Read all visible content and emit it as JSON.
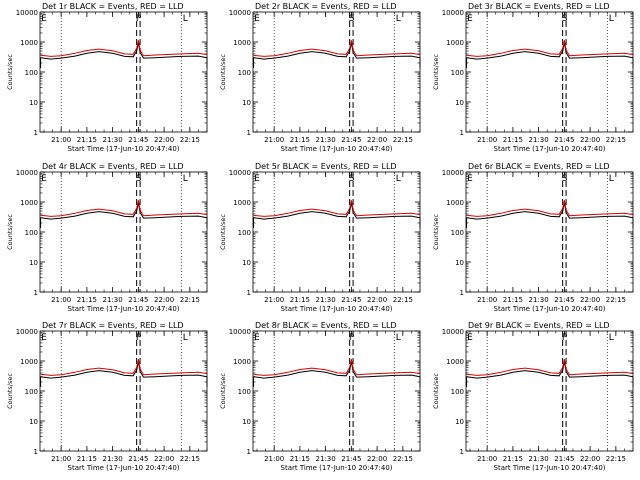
{
  "figure": {
    "background": "#ffffff",
    "foreground": "#000000",
    "ylabel": "Counts/sec",
    "xlabel": "Start Time (17-Jun-10 20:47:40)",
    "xticks": [
      "21:00",
      "21:15",
      "21:30",
      "21:45",
      "22:00",
      "22:15"
    ],
    "yticks": [
      "1",
      "10",
      "100",
      "1000",
      "10000"
    ]
  },
  "chart_data": [
    {
      "type": "line",
      "title": "Det 1r BLACK = Events, RED = LLD",
      "markers": [
        "E",
        "P",
        "L"
      ]
    },
    {
      "type": "line",
      "title": "Det 2r BLACK = Events, RED = LLD",
      "markers": [
        "E",
        "S",
        "L"
      ]
    },
    {
      "type": "line",
      "title": "Det 3r BLACK = Events, RED = LLD",
      "markers": [
        "E",
        "S",
        "L"
      ]
    },
    {
      "type": "line",
      "title": "Det 4r BLACK = Events, RED = LLD",
      "markers": [
        "E",
        "S",
        "L"
      ]
    },
    {
      "type": "line",
      "title": "Det 5r BLACK = Events, RED = LLD",
      "markers": [
        "E",
        "S",
        "L"
      ]
    },
    {
      "type": "line",
      "title": "Det 6r BLACK = Events, RED = LLD",
      "markers": [
        "E",
        "S",
        "L"
      ]
    },
    {
      "type": "line",
      "title": "Det 7r BLACK = Events, RED = LLD",
      "markers": [
        "E",
        "P",
        "L"
      ]
    },
    {
      "type": "line",
      "title": "Det 8r BLACK = Events, RED = LLD",
      "markers": [
        "E",
        "P",
        "L"
      ]
    },
    {
      "type": "line",
      "title": "Det 9r BLACK = Events, RED = LLD",
      "markers": [
        "E",
        "P",
        "L"
      ]
    }
  ],
  "shared_axes": {
    "xlim": [
      "20:47:40",
      "22:25:00"
    ],
    "ylim": [
      1,
      10000
    ],
    "yscale": "log",
    "dotted_vertical_lines_at": [
      "21:00",
      "22:10"
    ],
    "dashed_vertical_lines_at": [
      "21:44",
      "21:46"
    ],
    "series": [
      {
        "name": "Events",
        "color": "#000000",
        "x": [
          "20:48",
          "20:54",
          "21:00",
          "21:08",
          "21:15",
          "21:22",
          "21:30",
          "21:37",
          "21:42",
          "21:44",
          "21:45",
          "21:46",
          "21:48",
          "21:55",
          "22:00",
          "22:10",
          "22:20",
          "22:25"
        ],
        "y": [
          300,
          270,
          290,
          340,
          420,
          480,
          420,
          330,
          320,
          500,
          950,
          440,
          290,
          300,
          310,
          330,
          340,
          300
        ]
      },
      {
        "name": "LLD",
        "color": "#dd0000",
        "x": [
          "20:48",
          "20:54",
          "21:00",
          "21:08",
          "21:15",
          "21:22",
          "21:30",
          "21:37",
          "21:42",
          "21:44",
          "21:45",
          "21:46",
          "21:48",
          "21:55",
          "22:00",
          "22:10",
          "22:20",
          "22:25"
        ],
        "y": [
          360,
          330,
          350,
          420,
          520,
          580,
          510,
          400,
          390,
          620,
          1150,
          540,
          350,
          370,
          380,
          400,
          420,
          380
        ]
      }
    ]
  }
}
